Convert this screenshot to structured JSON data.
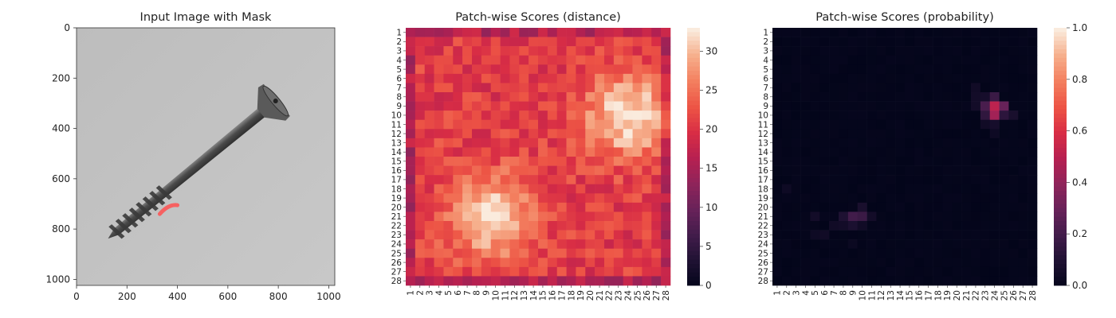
{
  "figure": {
    "panels": [
      "Input Image with Mask",
      "Patch-wise Scores (distance)",
      "Patch-wise Scores (probability)"
    ]
  },
  "chart_data": [
    {
      "type": "image",
      "title": "Input Image with Mask",
      "xticks": [
        0,
        200,
        400,
        600,
        800,
        1000
      ],
      "yticks": [
        0,
        200,
        400,
        600,
        800,
        1000
      ],
      "xlim": [
        0,
        1024
      ],
      "ylim": [
        1024,
        0
      ],
      "image_description": "grayscale photo of a countersunk screw, head at upper right, tip at lower left",
      "mask_color": "#ff5050",
      "mask_region": {
        "x": [
          330,
          400
        ],
        "y": [
          700,
          740
        ]
      }
    },
    {
      "type": "heatmap",
      "title": "Patch-wise Scores (distance)",
      "rows": 28,
      "cols": 28,
      "xticklabels": [
        "1",
        "2",
        "3",
        "4",
        "5",
        "6",
        "7",
        "8",
        "9",
        "10",
        "11",
        "12",
        "13",
        "14",
        "15",
        "16",
        "17",
        "18",
        "19",
        "20",
        "21",
        "22",
        "23",
        "24",
        "25",
        "26",
        "27",
        "28"
      ],
      "yticklabels": [
        "1",
        "2",
        "3",
        "4",
        "5",
        "6",
        "7",
        "8",
        "9",
        "10",
        "11",
        "12",
        "13",
        "14",
        "15",
        "16",
        "17",
        "18",
        "19",
        "20",
        "21",
        "22",
        "23",
        "24",
        "25",
        "26",
        "27",
        "28"
      ],
      "colorbar": {
        "ticks": [
          0,
          5,
          10,
          15,
          20,
          25,
          30
        ],
        "vmin": 0,
        "vmax": 33,
        "colormap": "rocket"
      },
      "hotspots": [
        {
          "row": 10,
          "col": 24,
          "value": 33,
          "spread": 3.2
        },
        {
          "row": 21,
          "col": 9.5,
          "value": 32,
          "spread": 3.2
        }
      ],
      "base_value": 21
    },
    {
      "type": "heatmap",
      "title": "Patch-wise Scores (probability)",
      "rows": 28,
      "cols": 28,
      "xticklabels": [
        "1",
        "2",
        "3",
        "4",
        "5",
        "6",
        "7",
        "8",
        "9",
        "10",
        "11",
        "12",
        "13",
        "14",
        "15",
        "16",
        "17",
        "18",
        "19",
        "20",
        "21",
        "22",
        "23",
        "24",
        "25",
        "26",
        "27",
        "28"
      ],
      "yticklabels": [
        "1",
        "2",
        "3",
        "4",
        "5",
        "6",
        "7",
        "8",
        "9",
        "10",
        "11",
        "12",
        "13",
        "14",
        "15",
        "16",
        "17",
        "18",
        "19",
        "20",
        "21",
        "22",
        "23",
        "24",
        "25",
        "26",
        "27",
        "28"
      ],
      "colorbar": {
        "ticks": [
          0.0,
          0.2,
          0.4,
          0.6,
          0.8,
          1.0
        ],
        "tick_labels": [
          "0.0",
          "0.2",
          "0.4",
          "0.6",
          "0.8",
          "1.0"
        ],
        "vmin": 0,
        "vmax": 1,
        "colormap": "rocket"
      },
      "nonzero_cells": [
        {
          "row": 9,
          "col": 24,
          "value": 0.52
        },
        {
          "row": 10,
          "col": 24,
          "value": 0.45
        },
        {
          "row": 9,
          "col": 25,
          "value": 0.3
        },
        {
          "row": 9,
          "col": 23,
          "value": 0.22
        },
        {
          "row": 8,
          "col": 24,
          "value": 0.18
        },
        {
          "row": 10,
          "col": 23,
          "value": 0.15
        },
        {
          "row": 10,
          "col": 25,
          "value": 0.14
        },
        {
          "row": 10,
          "col": 26,
          "value": 0.08
        },
        {
          "row": 8,
          "col": 23,
          "value": 0.07
        },
        {
          "row": 7,
          "col": 22,
          "value": 0.05
        },
        {
          "row": 8,
          "col": 22,
          "value": 0.06
        },
        {
          "row": 9,
          "col": 22,
          "value": 0.06
        },
        {
          "row": 11,
          "col": 24,
          "value": 0.07
        },
        {
          "row": 11,
          "col": 23,
          "value": 0.05
        },
        {
          "row": 12,
          "col": 24,
          "value": 0.04
        },
        {
          "row": 21,
          "col": 9,
          "value": 0.2
        },
        {
          "row": 21,
          "col": 10,
          "value": 0.18
        },
        {
          "row": 20,
          "col": 10,
          "value": 0.08
        },
        {
          "row": 22,
          "col": 9,
          "value": 0.09
        },
        {
          "row": 21,
          "col": 8,
          "value": 0.1
        },
        {
          "row": 22,
          "col": 8,
          "value": 0.06
        },
        {
          "row": 21,
          "col": 11,
          "value": 0.06
        },
        {
          "row": 22,
          "col": 10,
          "value": 0.05
        },
        {
          "row": 22,
          "col": 7,
          "value": 0.05
        },
        {
          "row": 23,
          "col": 6,
          "value": 0.05
        },
        {
          "row": 21,
          "col": 5,
          "value": 0.06
        },
        {
          "row": 23,
          "col": 5,
          "value": 0.04
        },
        {
          "row": 18,
          "col": 2,
          "value": 0.04
        },
        {
          "row": 24,
          "col": 9,
          "value": 0.03
        }
      ]
    }
  ]
}
